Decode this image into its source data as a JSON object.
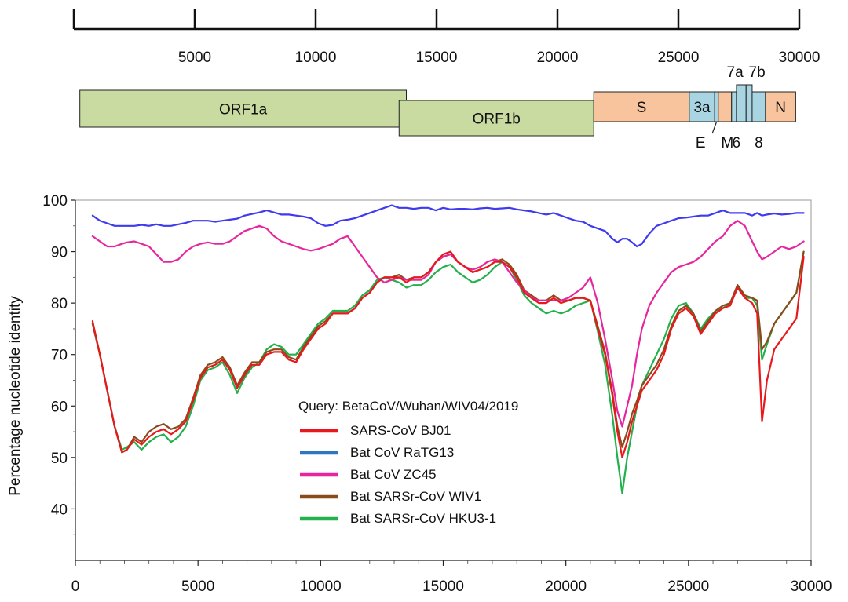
{
  "genome_map": {
    "scale_ticks": [
      "5000",
      "10000",
      "15000",
      "20000",
      "25000",
      "30000"
    ],
    "scale_tick_values": [
      5000,
      10000,
      15000,
      20000,
      25000,
      30000
    ],
    "scale_range": [
      0,
      30000
    ],
    "genes": [
      {
        "label": "ORF1a",
        "start": 250,
        "end": 13750,
        "row": "upper",
        "color": "#c9dba0"
      },
      {
        "label": "ORF1b",
        "start": 13450,
        "end": 21500,
        "row": "lower",
        "color": "#c9dba0"
      },
      {
        "label": "S",
        "start": 21500,
        "end": 25450,
        "row": "main",
        "color": "#f8c49e"
      },
      {
        "label": "3a",
        "start": 25450,
        "end": 26500,
        "row": "main",
        "color": "#a9d4e2"
      },
      {
        "label": "E",
        "start": 26500,
        "end": 26650,
        "row": "main",
        "color": "#a9d4e2"
      },
      {
        "label": "M",
        "start": 26650,
        "end": 27200,
        "row": "main",
        "color": "#f8c49e"
      },
      {
        "label": "6",
        "start": 27200,
        "end": 27400,
        "row": "main",
        "color": "#a9d4e2"
      },
      {
        "label": "7a",
        "start": 27400,
        "end": 27800,
        "row": "raised",
        "color": "#a9d4e2"
      },
      {
        "label": "7b",
        "start": 27800,
        "end": 28050,
        "row": "raised",
        "color": "#a9d4e2"
      },
      {
        "label": "8",
        "start": 28050,
        "end": 28600,
        "row": "main",
        "color": "#a9d4e2"
      },
      {
        "label": "N",
        "start": 28600,
        "end": 29850,
        "row": "main",
        "color": "#f8c49e"
      }
    ]
  },
  "chart_data": {
    "type": "line",
    "title": "",
    "xlabel": "",
    "ylabel": "Percentage nucleotide identity",
    "xlim": [
      0,
      30000
    ],
    "ylim": [
      30,
      100
    ],
    "x_ticks": [
      0,
      5000,
      10000,
      15000,
      20000,
      25000,
      30000
    ],
    "y_ticks": [
      40,
      50,
      60,
      70,
      80,
      90,
      100
    ],
    "grid": false,
    "legend": {
      "title": "Query: BetaCoV/Wuhan/WIV04/2019",
      "placement": "lower-center"
    },
    "series": [
      {
        "name": "SARS-CoV BJ01",
        "color": "#e8191c",
        "x": [
          700,
          1000,
          1300,
          1600,
          1900,
          2100,
          2400,
          2700,
          3000,
          3300,
          3600,
          3900,
          4200,
          4500,
          4800,
          5100,
          5400,
          5700,
          6000,
          6300,
          6600,
          6900,
          7200,
          7500,
          7800,
          8100,
          8400,
          8700,
          9000,
          9300,
          9600,
          9900,
          10200,
          10500,
          10800,
          11100,
          11400,
          11700,
          12000,
          12300,
          12600,
          12900,
          13200,
          13500,
          13800,
          14100,
          14400,
          14700,
          15000,
          15300,
          15600,
          15900,
          16200,
          16500,
          16800,
          17100,
          17400,
          17700,
          18000,
          18300,
          18600,
          18900,
          19200,
          19500,
          19800,
          20100,
          20400,
          20700,
          21000,
          21300,
          21600,
          21900,
          22100,
          22300,
          22500,
          22700,
          22900,
          23100,
          23400,
          23700,
          24000,
          24300,
          24600,
          24900,
          25200,
          25500,
          25800,
          26100,
          26400,
          26700,
          27000,
          27300,
          27600,
          27800,
          28000,
          28200,
          28500,
          28800,
          29100,
          29400,
          29700
        ],
        "y": [
          76.5,
          70,
          63,
          56,
          51,
          51.5,
          53.5,
          52.5,
          54,
          55,
          55.5,
          54.5,
          55.5,
          57,
          61,
          65.5,
          67.5,
          68,
          69,
          67,
          63.5,
          66,
          68,
          68,
          70,
          70.5,
          70.5,
          69,
          68.5,
          71,
          73,
          75,
          76,
          78,
          78,
          78,
          79,
          81,
          82,
          84,
          85,
          85,
          85,
          84,
          85,
          85,
          86,
          88,
          89.5,
          90,
          88,
          87,
          86,
          86.5,
          87,
          88,
          88,
          87,
          85,
          82,
          81,
          80,
          80,
          81,
          80,
          80.5,
          81,
          81,
          80.5,
          75,
          70,
          62,
          55,
          50,
          53,
          57,
          60,
          63,
          65,
          67,
          70,
          75,
          78,
          79,
          77.5,
          74,
          76,
          78,
          79,
          79.5,
          83,
          81,
          80,
          78,
          57,
          65,
          71,
          73,
          75,
          77,
          89
        ]
      },
      {
        "name": "Bat CoV RaTG13",
        "color": "#3f3af0",
        "x": [
          700,
          1000,
          1300,
          1600,
          1900,
          2100,
          2400,
          2700,
          3000,
          3300,
          3600,
          3900,
          4200,
          4500,
          4800,
          5100,
          5400,
          5700,
          6000,
          6300,
          6600,
          6900,
          7200,
          7500,
          7800,
          8100,
          8400,
          8700,
          9000,
          9300,
          9600,
          9900,
          10200,
          10500,
          10800,
          11100,
          11400,
          11700,
          12000,
          12300,
          12600,
          12900,
          13200,
          13500,
          13800,
          14100,
          14400,
          14700,
          15000,
          15300,
          15600,
          15900,
          16200,
          16500,
          16800,
          17100,
          17400,
          17700,
          18000,
          18300,
          18600,
          18900,
          19200,
          19500,
          19800,
          20100,
          20400,
          20700,
          21000,
          21300,
          21600,
          21900,
          22100,
          22300,
          22500,
          22700,
          22900,
          23100,
          23400,
          23700,
          24000,
          24300,
          24600,
          24900,
          25200,
          25500,
          25800,
          26100,
          26400,
          26700,
          27000,
          27300,
          27600,
          27800,
          28000,
          28200,
          28500,
          28800,
          29100,
          29400,
          29700
        ],
        "y": [
          97,
          96,
          95.5,
          95,
          95,
          95,
          95,
          95.2,
          95,
          95.3,
          95,
          95,
          95.3,
          95.6,
          96,
          96,
          96,
          95.8,
          96,
          96.2,
          96.4,
          97,
          97.3,
          97.6,
          98,
          97.6,
          97.2,
          97.2,
          97,
          96.8,
          96.5,
          95.5,
          95,
          95.2,
          96,
          96.2,
          96.5,
          97,
          97.5,
          98,
          98.5,
          99,
          98.5,
          98.5,
          98.3,
          98.5,
          98.5,
          98,
          98.5,
          98.2,
          98.3,
          98.3,
          98.2,
          98.4,
          98.5,
          98.3,
          98.4,
          98.5,
          98.2,
          98,
          97.8,
          97.5,
          97.2,
          97.5,
          97,
          96.5,
          96,
          95.8,
          95,
          94.5,
          94,
          92.5,
          91.8,
          92.5,
          92.5,
          91.8,
          91,
          91.5,
          93.5,
          95,
          95.5,
          96,
          96.5,
          96.6,
          96.8,
          97,
          97,
          97.5,
          98,
          97.5,
          97.5,
          97.5,
          97,
          97.5,
          97,
          97.2,
          97.4,
          97.2,
          97.3,
          97.5,
          97.5
        ]
      },
      {
        "name": "Bat CoV ZC45",
        "color": "#e7269e",
        "x": [
          700,
          1000,
          1300,
          1600,
          1900,
          2100,
          2400,
          2700,
          3000,
          3300,
          3600,
          3900,
          4200,
          4500,
          4800,
          5100,
          5400,
          5700,
          6000,
          6300,
          6600,
          6900,
          7200,
          7500,
          7800,
          8100,
          8400,
          8700,
          9000,
          9300,
          9600,
          9900,
          10200,
          10500,
          10800,
          11100,
          11400,
          11700,
          12000,
          12300,
          12600,
          12900,
          13200,
          13500,
          13800,
          14100,
          14400,
          14700,
          15000,
          15300,
          15600,
          15900,
          16200,
          16500,
          16800,
          17100,
          17400,
          17700,
          18000,
          18300,
          18600,
          18900,
          19200,
          19500,
          19800,
          20100,
          20400,
          20700,
          21000,
          21300,
          21600,
          21900,
          22100,
          22300,
          22500,
          22700,
          22900,
          23100,
          23400,
          23700,
          24000,
          24300,
          24600,
          24900,
          25200,
          25500,
          25800,
          26100,
          26400,
          26700,
          27000,
          27300,
          27600,
          27800,
          28000,
          28200,
          28500,
          28800,
          29100,
          29400,
          29700
        ],
        "y": [
          93,
          92,
          91,
          91,
          91.5,
          91.8,
          92,
          91.5,
          91,
          89.5,
          88,
          88,
          88.5,
          90,
          91,
          91.5,
          91.8,
          91.5,
          91.5,
          92,
          93,
          94,
          94.5,
          95,
          94.5,
          93,
          92,
          91.5,
          91,
          90.5,
          90.2,
          90.5,
          91,
          91.5,
          92.5,
          93,
          91,
          89,
          87,
          85,
          84,
          84.5,
          85,
          84.5,
          84.5,
          84.5,
          85.5,
          88,
          89,
          89.5,
          88,
          87,
          86.5,
          87,
          88,
          88.5,
          88,
          86,
          84,
          82.5,
          81,
          80.5,
          80.5,
          80.5,
          80.5,
          81,
          82,
          83,
          85,
          80,
          73,
          65,
          59,
          56,
          60,
          64,
          70,
          75,
          79.5,
          82,
          84,
          86,
          87,
          87.5,
          88,
          89,
          90.5,
          92,
          93,
          95,
          96,
          95,
          92,
          90,
          88.5,
          89,
          90,
          91,
          90.5,
          91,
          92
        ]
      },
      {
        "name": "Bat SARSr-CoV WIV1",
        "color": "#8b4a1c",
        "x": [
          700,
          1000,
          1300,
          1600,
          1900,
          2100,
          2400,
          2700,
          3000,
          3300,
          3600,
          3900,
          4200,
          4500,
          4800,
          5100,
          5400,
          5700,
          6000,
          6300,
          6600,
          6900,
          7200,
          7500,
          7800,
          8100,
          8400,
          8700,
          9000,
          9300,
          9600,
          9900,
          10200,
          10500,
          10800,
          11100,
          11400,
          11700,
          12000,
          12300,
          12600,
          12900,
          13200,
          13500,
          13800,
          14100,
          14400,
          14700,
          15000,
          15300,
          15600,
          15900,
          16200,
          16500,
          16800,
          17100,
          17400,
          17700,
          18000,
          18300,
          18600,
          18900,
          19200,
          19500,
          19800,
          20100,
          20400,
          20700,
          21000,
          21300,
          21600,
          21900,
          22100,
          22300,
          22500,
          22700,
          22900,
          23100,
          23400,
          23700,
          24000,
          24300,
          24600,
          24900,
          25200,
          25500,
          25800,
          26100,
          26400,
          26700,
          27000,
          27300,
          27600,
          27800,
          28000,
          28200,
          28500,
          28800,
          29100,
          29400,
          29700
        ],
        "y": [
          76,
          70,
          63,
          56,
          51,
          51.5,
          54,
          53,
          55,
          56,
          56.5,
          55.5,
          56,
          57.5,
          61.5,
          66,
          68,
          68.5,
          69.5,
          67.5,
          64,
          66.5,
          68.5,
          68.5,
          70.5,
          71,
          71,
          69.5,
          69,
          71.5,
          73.5,
          75.5,
          76.5,
          78,
          78,
          78,
          79,
          81,
          82,
          84,
          85,
          85,
          85.5,
          84.5,
          85,
          85,
          86,
          88,
          89,
          89.5,
          88,
          87,
          86,
          86.5,
          87,
          88,
          88.5,
          87.5,
          85.5,
          82.5,
          81.5,
          80.5,
          80.5,
          81.5,
          80.5,
          80.5,
          81,
          81,
          80.5,
          75.5,
          70.5,
          62.5,
          56,
          52,
          55,
          58.5,
          61,
          64,
          66,
          68,
          71,
          75.5,
          78.5,
          79.5,
          78,
          74.5,
          76.5,
          78.5,
          79.5,
          80,
          83.5,
          81.5,
          81,
          80.5,
          71,
          72.5,
          76,
          78,
          80,
          82,
          90
        ]
      },
      {
        "name": "Bat SARSr-CoV HKU3-1",
        "color": "#22b14c",
        "x": [
          700,
          1000,
          1300,
          1600,
          1900,
          2100,
          2400,
          2700,
          3000,
          3300,
          3600,
          3900,
          4200,
          4500,
          4800,
          5100,
          5400,
          5700,
          6000,
          6300,
          6600,
          6900,
          7200,
          7500,
          7800,
          8100,
          8400,
          8700,
          9000,
          9300,
          9600,
          9900,
          10200,
          10500,
          10800,
          11100,
          11400,
          11700,
          12000,
          12300,
          12600,
          12900,
          13200,
          13500,
          13800,
          14100,
          14400,
          14700,
          15000,
          15300,
          15600,
          15900,
          16200,
          16500,
          16800,
          17100,
          17400,
          17700,
          18000,
          18300,
          18600,
          18900,
          19200,
          19500,
          19800,
          20100,
          20400,
          20700,
          21000,
          21300,
          21600,
          21900,
          22100,
          22300,
          22500,
          22700,
          22900,
          23100,
          23400,
          23700,
          24000,
          24300,
          24600,
          24900,
          25200,
          25500,
          25800,
          26100,
          26400,
          26700,
          27000,
          27300,
          27600,
          27800,
          28000,
          28200,
          28500,
          28800,
          29100,
          29400,
          29700
        ],
        "y": [
          76,
          70,
          63,
          56,
          51.5,
          52,
          53,
          51.5,
          53,
          54,
          54.5,
          53,
          54,
          56,
          60,
          65,
          67,
          67.5,
          68.5,
          66,
          62.5,
          65.5,
          67.5,
          68.5,
          71,
          72,
          71.5,
          70,
          70,
          72,
          74,
          76,
          77,
          78.5,
          78.5,
          78.5,
          79.5,
          81.5,
          82.5,
          84.5,
          85,
          84.5,
          84,
          83,
          83.5,
          83.5,
          84.5,
          86,
          87,
          87.5,
          86,
          85,
          84,
          84.5,
          85.5,
          87,
          88,
          87,
          84.5,
          81.5,
          80,
          79,
          78,
          78.5,
          78,
          78.5,
          79.5,
          80,
          80.5,
          74.5,
          68,
          58,
          50,
          43,
          50,
          55,
          60,
          64,
          67,
          70,
          73,
          77,
          79.5,
          80,
          78,
          75,
          77,
          78.5,
          79,
          80,
          83,
          81,
          81,
          79.5,
          69,
          72,
          76,
          78,
          80,
          82,
          90
        ]
      }
    ]
  }
}
